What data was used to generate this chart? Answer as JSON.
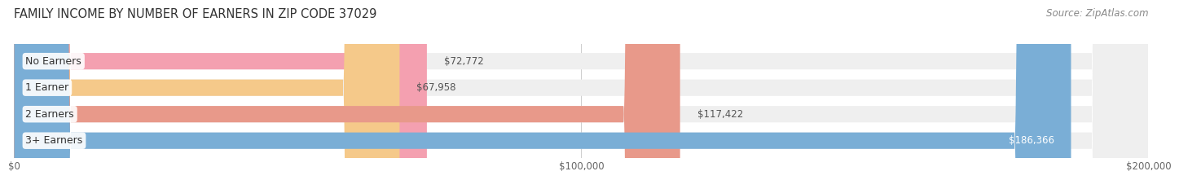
{
  "title": "FAMILY INCOME BY NUMBER OF EARNERS IN ZIP CODE 37029",
  "source": "Source: ZipAtlas.com",
  "categories": [
    "No Earners",
    "1 Earner",
    "2 Earners",
    "3+ Earners"
  ],
  "values": [
    72772,
    67958,
    117422,
    186366
  ],
  "bar_colors": [
    "#f4a0b0",
    "#f5c98a",
    "#e8998a",
    "#7aaed6"
  ],
  "bar_bg_color": "#efefef",
  "value_labels": [
    "$72,772",
    "$67,958",
    "$117,422",
    "$186,366"
  ],
  "xlim": [
    0,
    200000
  ],
  "xticks": [
    0,
    100000,
    200000
  ],
  "xtick_labels": [
    "$0",
    "$100,000",
    "$200,000"
  ],
  "background_color": "#ffffff",
  "title_fontsize": 10.5,
  "source_fontsize": 8.5,
  "label_fontsize": 9,
  "value_fontsize": 8.5,
  "bar_height": 0.62
}
